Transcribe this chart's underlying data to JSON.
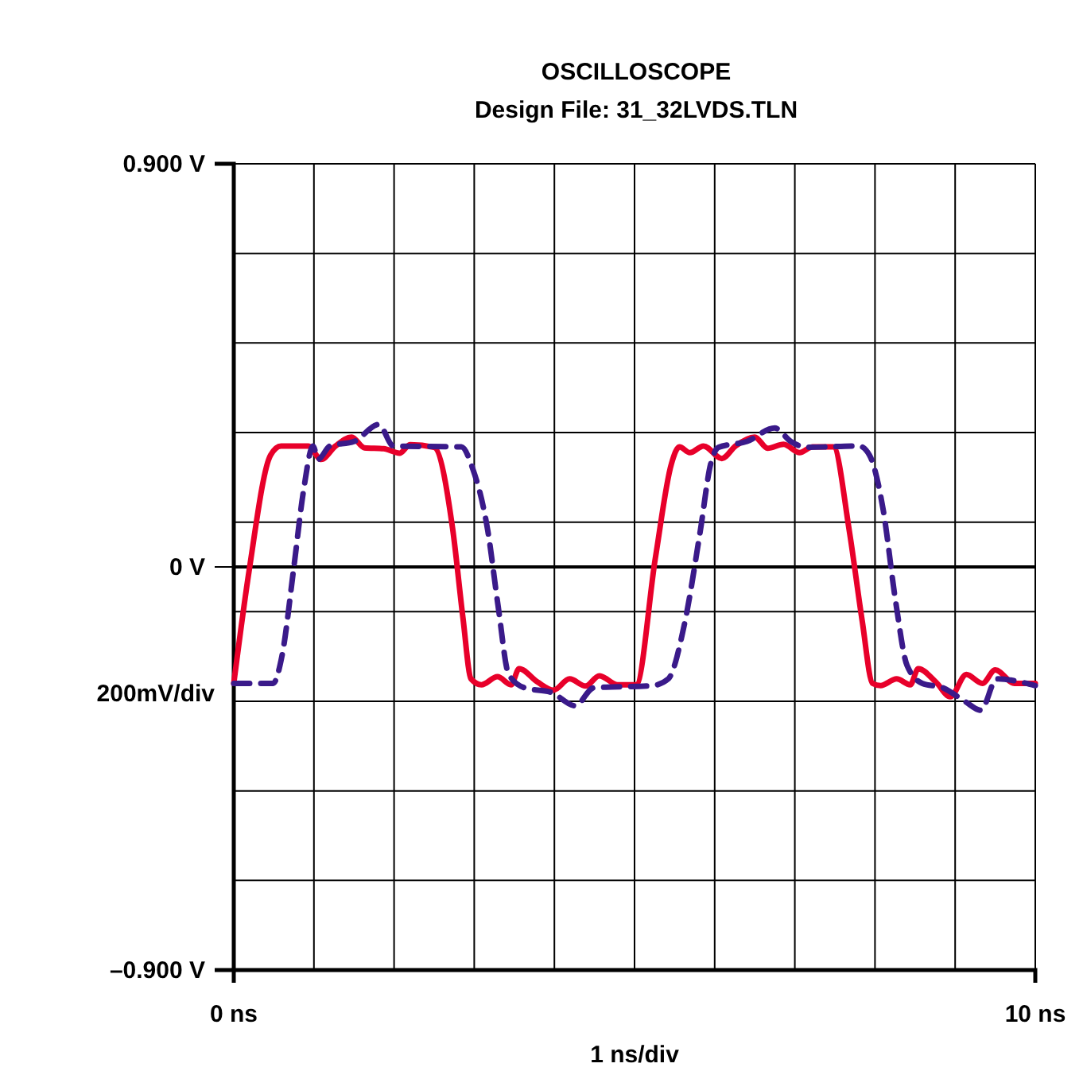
{
  "chart_data": {
    "type": "line",
    "title": "OSCILLOSCOPE",
    "subtitle": "Design File: 31_32LVDS.TLN",
    "xlabel": "1 ns/div",
    "ylabel": "200mV/div",
    "xlim": [
      0,
      10
    ],
    "xticks": [
      {
        "value": 0,
        "label": "0 ns"
      },
      {
        "value": 1,
        "label": null
      },
      {
        "value": 2,
        "label": null
      },
      {
        "value": 3,
        "label": null
      },
      {
        "value": 4,
        "label": null
      },
      {
        "value": 5,
        "label": null
      },
      {
        "value": 6,
        "label": null
      },
      {
        "value": 7,
        "label": null
      },
      {
        "value": 8,
        "label": null
      },
      {
        "value": 9,
        "label": null
      },
      {
        "value": 10,
        "label": "10 ns"
      }
    ],
    "ylim": [
      -0.9,
      0.9
    ],
    "yticks": [
      {
        "value": -0.9,
        "label": "–0.900 V"
      },
      {
        "value": -0.7,
        "label": null
      },
      {
        "value": -0.5,
        "label": null
      },
      {
        "value": -0.3,
        "label": null
      },
      {
        "value": -0.1,
        "label": null
      },
      {
        "value": 0,
        "label": "0 V"
      },
      {
        "value": 0.1,
        "label": null
      },
      {
        "value": 0.3,
        "label": null
      },
      {
        "value": 0.5,
        "label": null
      },
      {
        "value": 0.7,
        "label": null
      },
      {
        "value": 0.9,
        "label": "0.900 V"
      }
    ],
    "grid": true,
    "marker": "none",
    "series": [
      {
        "color": "#e8002a",
        "line_style": "solid",
        "x": [
          0,
          0.19,
          0.46,
          0.59,
          0.93,
          1.09,
          1.27,
          1.47,
          1.63,
          1.87,
          2.07,
          2.2,
          2.5,
          2.73,
          2.86,
          2.96,
          3.09,
          3.29,
          3.46,
          3.56,
          3.79,
          3.99,
          4.19,
          4.39,
          4.56,
          4.79,
          5.02,
          5.26,
          5.46,
          5.56,
          5.69,
          5.86,
          6.09,
          6.26,
          6.5,
          6.66,
          6.86,
          7.06,
          7.22,
          7.48,
          7.68,
          7.84,
          7.97,
          8.07,
          8.27,
          8.44,
          8.54,
          8.76,
          8.94,
          9.14,
          9.34,
          9.5,
          9.74,
          10
        ],
        "values": [
          -0.26,
          -0.01,
          0.25,
          0.27,
          0.27,
          0.24,
          0.27,
          0.29,
          0.266,
          0.264,
          0.254,
          0.273,
          0.267,
          0.086,
          -0.115,
          -0.25,
          -0.263,
          -0.245,
          -0.263,
          -0.227,
          -0.257,
          -0.275,
          -0.25,
          -0.266,
          -0.243,
          -0.263,
          -0.263,
          0.02,
          0.23,
          0.268,
          0.255,
          0.27,
          0.242,
          0.27,
          0.29,
          0.265,
          0.274,
          0.255,
          0.268,
          0.268,
          0.08,
          -0.12,
          -0.26,
          -0.265,
          -0.25,
          -0.263,
          -0.227,
          -0.257,
          -0.29,
          -0.24,
          -0.26,
          -0.23,
          -0.26,
          -0.26
        ]
      },
      {
        "color": "#3a1a8a",
        "line_style": "dashed",
        "x": [
          0,
          0.49,
          0.6,
          0.75,
          0.87,
          0.99,
          1.05,
          1.2,
          1.5,
          1.81,
          1.99,
          2.84,
          2.98,
          3.17,
          3.3,
          3.43,
          3.63,
          3.96,
          4.26,
          4.49,
          5.22,
          5.42,
          5.62,
          5.82,
          5.95,
          6.05,
          6.4,
          6.75,
          6.95,
          7.15,
          7.8,
          7.93,
          8.1,
          8.26,
          8.4,
          8.59,
          8.85,
          9.12,
          9.32,
          9.52,
          10
        ],
        "values": [
          -0.26,
          -0.26,
          -0.2,
          0.0,
          0.17,
          0.27,
          0.24,
          0.27,
          0.28,
          0.318,
          0.27,
          0.268,
          0.22,
          0.08,
          -0.09,
          -0.24,
          -0.27,
          -0.28,
          -0.31,
          -0.27,
          -0.265,
          -0.25,
          -0.13,
          0.08,
          0.23,
          0.267,
          0.28,
          0.31,
          0.28,
          0.267,
          0.27,
          0.25,
          0.13,
          -0.08,
          -0.22,
          -0.26,
          -0.27,
          -0.3,
          -0.32,
          -0.25,
          -0.265
        ]
      }
    ]
  }
}
